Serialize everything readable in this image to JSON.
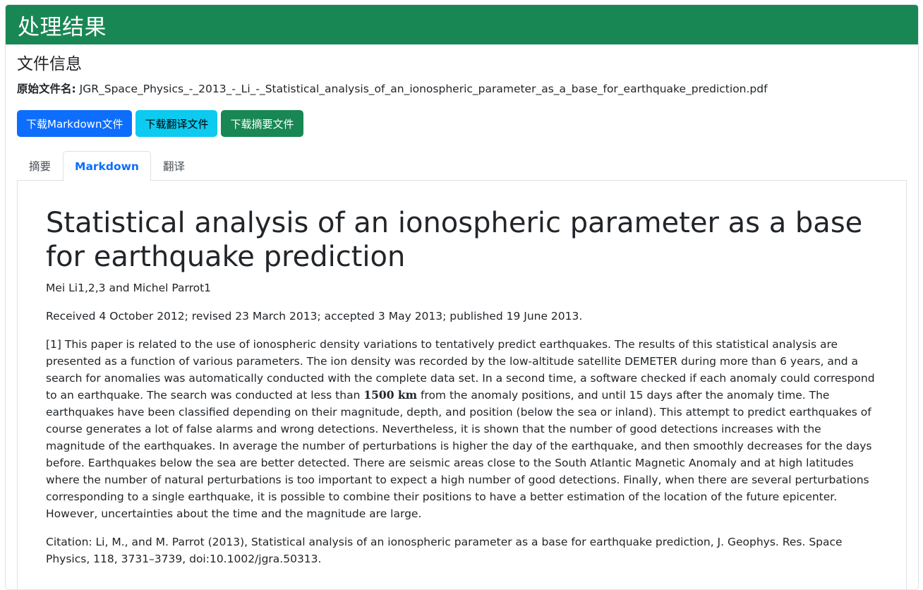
{
  "header": {
    "title": "处理结果"
  },
  "file_info": {
    "section_title": "文件信息",
    "original_name_label": "原始文件名:",
    "original_name": "JGR_Space_Physics_-_2013_-_Li_-_Statistical_analysis_of_an_ionospheric_parameter_as_a_base_for_earthquake_prediction.pdf"
  },
  "buttons": {
    "download_markdown": "下载Markdown文件",
    "download_translation": "下载翻译文件",
    "download_summary": "下载摘要文件"
  },
  "tabs": [
    {
      "label": "摘要",
      "active": false
    },
    {
      "label": "Markdown",
      "active": true
    },
    {
      "label": "翻译",
      "active": false
    }
  ],
  "document": {
    "title": "Statistical analysis of an ionospheric parameter as a base for earthquake prediction",
    "authors": "Mei Li1,2,3 and Michel Parrot1",
    "received": "Received 4 October 2012; revised 23 March 2013; accepted 3 May 2013; published 19 June 2013.",
    "abstract_part1": "[1] This paper is related to the use of ionospheric density variations to tentatively predict earthquakes. The results of this statistical analysis are presented as a function of various parameters. The ion density was recorded by the low-altitude satellite DEMETER during more than 6 years, and a search for anomalies was automatically conducted with the complete data set. In a second time, a software checked if each anomaly could correspond to an earthquake. The search was conducted at less than ",
    "abstract_math": "1500 km",
    "abstract_part2": " from the anomaly positions, and until 15 days after the anomaly time. The earthquakes have been classified depending on their magnitude, depth, and position (below the sea or inland). This attempt to predict earthquakes of course generates a lot of false alarms and wrong detections. Nevertheless, it is shown that the number of good detections increases with the magnitude of the earthquakes. In average the number of perturbations is higher the day of the earthquake, and then smoothly decreases for the days before. Earthquakes below the sea are better detected. There are seismic areas close to the South Atlantic Magnetic Anomaly and at high latitudes where the number of natural perturbations is too important to expect a high number of good detections. Finally, when there are several perturbations corresponding to a single earthquake, it is possible to combine their positions to have a better estimation of the location of the future epicenter. However, uncertainties about the time and the magnitude are large.",
    "citation": "Citation: Li, M., and M. Parrot (2013), Statistical analysis of an ionospheric parameter as a base for earthquake prediction, J. Geophys. Res. Space Physics, 118, 3731–3739, doi:10.1002/jgra.50313."
  },
  "colors": {
    "header_bg": "#198754",
    "primary": "#0d6efd",
    "info": "#0dcaf0",
    "success": "#198754"
  }
}
